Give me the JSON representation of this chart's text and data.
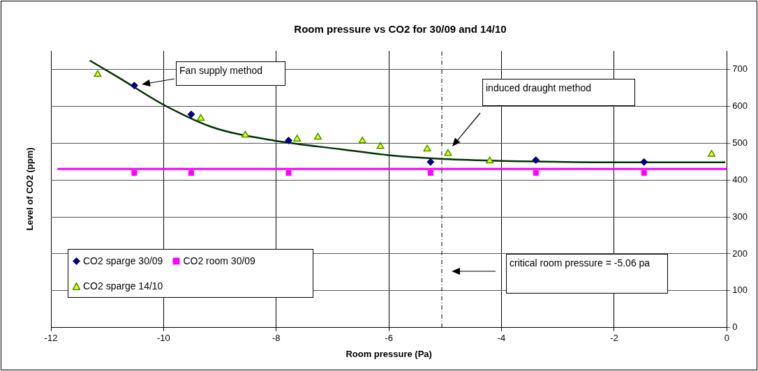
{
  "chart_data": {
    "type": "scatter",
    "title": "Room pressure vs CO2 for 30/09 and 14/10",
    "xlabel": "Room pressure (Pa)",
    "ylabel": "Level of CO2 (ppm)",
    "xlim": [
      -12,
      0
    ],
    "xticks": [
      -12,
      -10,
      -8,
      -6,
      -4,
      -2,
      0
    ],
    "ylim": [
      0,
      750
    ],
    "yticks": [
      0,
      100,
      200,
      300,
      400,
      500,
      600,
      700
    ],
    "grid": true,
    "legend": "bottom left",
    "series": [
      {
        "name": "CO2 sparge 30/09",
        "type": "scatter",
        "marker": "diamond",
        "color": "#000080",
        "x": [
          -10.52,
          -9.51,
          -7.78,
          -5.26,
          -3.39,
          -1.47
        ],
        "values": [
          656,
          578,
          507,
          449,
          454,
          449
        ]
      },
      {
        "name": "CO2 room 30/09",
        "type": "scatter",
        "marker": "square",
        "color": "#ff00ff",
        "x": [
          -10.52,
          -9.51,
          -7.78,
          -5.26,
          -3.39,
          -1.47
        ],
        "values": [
          419,
          419,
          419,
          419,
          419,
          419
        ]
      },
      {
        "name": "CO2 sparge 14/10",
        "type": "scatter",
        "marker": "triangle",
        "color": "#ffff00",
        "x": [
          -11.17,
          -9.34,
          -8.55,
          -7.63,
          -7.26,
          -6.47,
          -6.15,
          -5.32,
          -4.95,
          -4.21,
          -0.27
        ],
        "values": [
          686,
          567,
          522,
          511,
          516,
          506,
          491,
          484,
          472,
          452,
          470
        ]
      },
      {
        "type": "line",
        "marker": "none",
        "color": "#ff00ff",
        "x": [
          -11.87,
          0
        ],
        "values": [
          430,
          430
        ]
      },
      {
        "type": "line",
        "marker": "none",
        "color": "#003300",
        "x": [
          -11.3,
          -10.8,
          -10,
          -9.15,
          -8,
          -6.88,
          -5.98,
          -5.03,
          -4,
          -2,
          -0.04
        ],
        "values": [
          723,
          678,
          604,
          544,
          506,
          484,
          467,
          457,
          452,
          448,
          448
        ]
      }
    ],
    "ref_lines": [
      {
        "axis": "x",
        "value": -5.06,
        "color": "#000000",
        "line_style": "dashed"
      }
    ],
    "annotations": [
      "Fan supply method",
      "induced draught method",
      "critical room pressure = -5.06 pa"
    ]
  }
}
